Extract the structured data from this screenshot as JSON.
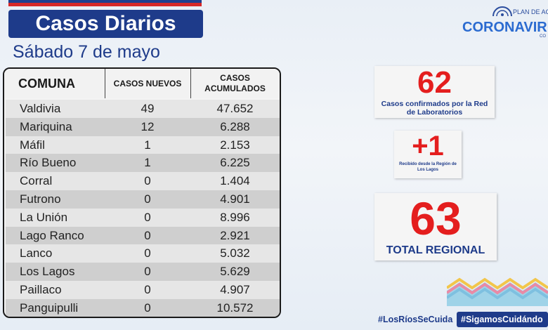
{
  "header": {
    "title": "Casos Diarios",
    "date": "Sábado 7 de mayo"
  },
  "logo": {
    "plan": "PLAN DE ACC",
    "brand": "CORONAVIRU",
    "sub": "CO"
  },
  "table": {
    "headers": [
      "COMUNA",
      "CASOS NUEVOS",
      "CASOS ACUMULADOS"
    ],
    "rows": [
      {
        "comuna": "Valdivia",
        "nuevos": "49",
        "acumulados": "47.652"
      },
      {
        "comuna": "Mariquina",
        "nuevos": "12",
        "acumulados": "6.288"
      },
      {
        "comuna": "Máfil",
        "nuevos": "1",
        "acumulados": "2.153"
      },
      {
        "comuna": "Río Bueno",
        "nuevos": "1",
        "acumulados": "6.225"
      },
      {
        "comuna": "Corral",
        "nuevos": "0",
        "acumulados": "1.404"
      },
      {
        "comuna": "Futrono",
        "nuevos": "0",
        "acumulados": "4.901"
      },
      {
        "comuna": "La Unión",
        "nuevos": "0",
        "acumulados": "8.996"
      },
      {
        "comuna": "Lago Ranco",
        "nuevos": "0",
        "acumulados": "2.921"
      },
      {
        "comuna": "Lanco",
        "nuevos": "0",
        "acumulados": "5.032"
      },
      {
        "comuna": "Los Lagos",
        "nuevos": "0",
        "acumulados": "5.629"
      },
      {
        "comuna": "Paillaco",
        "nuevos": "0",
        "acumulados": "4.907"
      },
      {
        "comuna": "Panguipulli",
        "nuevos": "0",
        "acumulados": "10.572"
      }
    ]
  },
  "cards": {
    "lab": {
      "value": "62",
      "label": "Casos confirmados por la Red de Laboratorios"
    },
    "received": {
      "value": "+1",
      "label": "Recibido desde la Región de Los Lagos"
    },
    "total": {
      "value": "63",
      "label": "TOTAL REGIONAL"
    }
  },
  "hashtags": [
    "#LosRíosSeCuida",
    "#SigamosCuidándo"
  ],
  "colors": {
    "brand_blue": "#1e3b8a",
    "accent_red": "#e41e1e"
  }
}
